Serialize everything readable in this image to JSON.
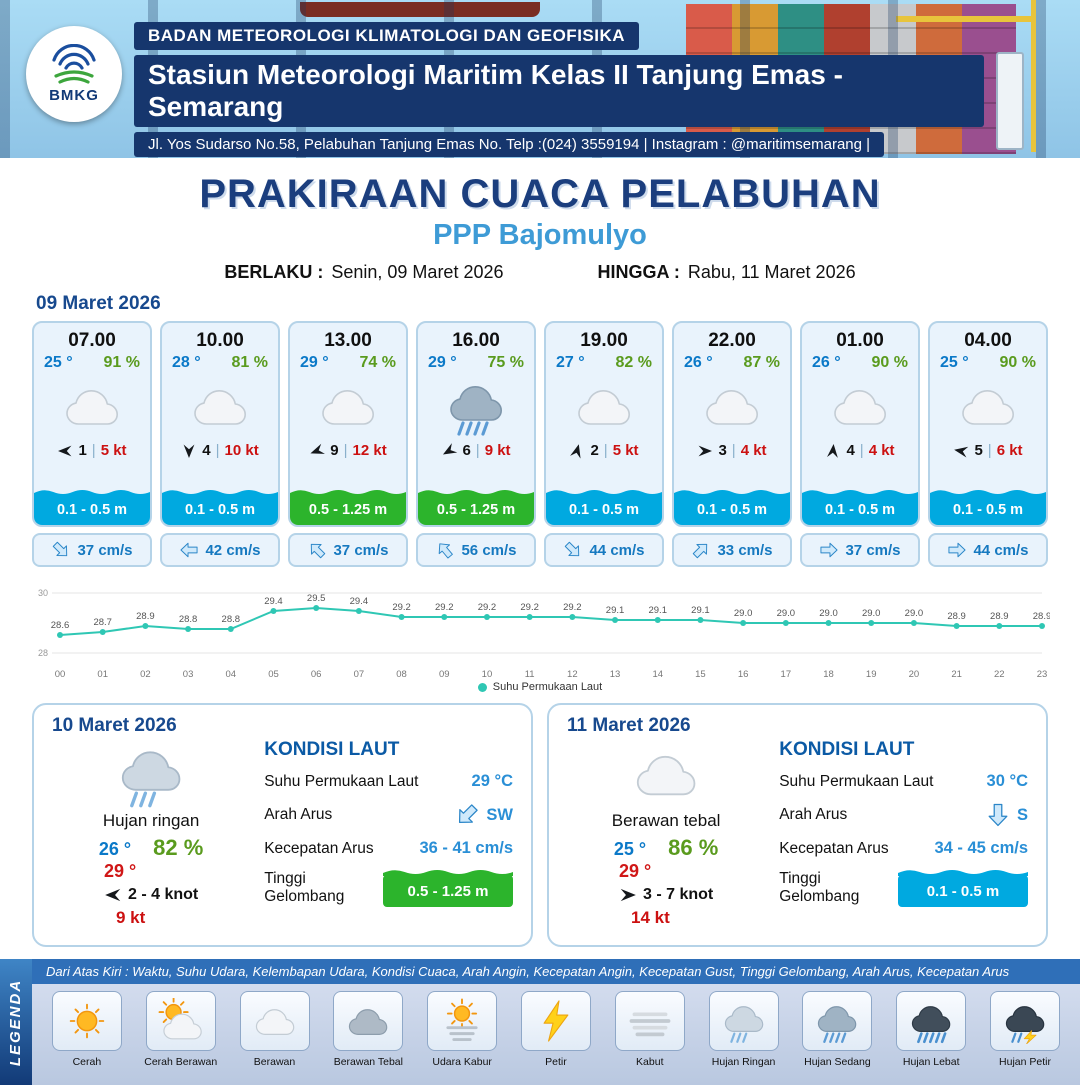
{
  "header": {
    "logo_text": "BMKG",
    "org": "BADAN METEOROLOGI KLIMATOLOGI DAN GEOFISIKA",
    "station": "Stasiun Meteorologi Maritim Kelas II Tanjung Emas - Semarang",
    "address": "Jl. Yos Sudarso No.58, Pelabuhan Tanjung Emas No. Telp :(024) 3559194 | Instagram : @maritimsemarang |"
  },
  "title": {
    "main": "PRAKIRAAN CUACA PELABUHAN",
    "location": "PPP Bajomulyo"
  },
  "validity": {
    "berlaku_label": "BERLAKU :",
    "berlaku_value": "Senin, 09 Maret 2026",
    "hingga_label": "HINGGA :",
    "hingga_value": "Rabu, 11 Maret 2026"
  },
  "day_label": "09 Maret 2026",
  "hourly": [
    {
      "time": "07.00",
      "temp": "25 °",
      "humidity": "91 %",
      "icon": "cloud",
      "wind_deg": 270,
      "wind_num": "1",
      "wind_speed": "5 kt",
      "wave": "0.1 - 0.5 m",
      "wave_color": "blue",
      "cur_deg": 135,
      "cur": "37 cm/s"
    },
    {
      "time": "10.00",
      "temp": "28 °",
      "humidity": "81 %",
      "icon": "cloud",
      "wind_deg": 180,
      "wind_num": "4",
      "wind_speed": "10 kt",
      "wave": "0.1 - 0.5 m",
      "wave_color": "blue",
      "cur_deg": 270,
      "cur": "42 cm/s"
    },
    {
      "time": "13.00",
      "temp": "29 °",
      "humidity": "74 %",
      "icon": "cloud",
      "wind_deg": 250,
      "wind_num": "9",
      "wind_speed": "12 kt",
      "wave": "0.5 - 1.25 m",
      "wave_color": "green",
      "cur_deg": 315,
      "cur": "37 cm/s"
    },
    {
      "time": "16.00",
      "temp": "29 °",
      "humidity": "75 %",
      "icon": "rain-med",
      "wind_deg": 240,
      "wind_num": "6",
      "wind_speed": "9 kt",
      "wave": "0.5 - 1.25 m",
      "wave_color": "green",
      "cur_deg": 320,
      "cur": "56 cm/s"
    },
    {
      "time": "19.00",
      "temp": "27 °",
      "humidity": "82 %",
      "icon": "cloud",
      "wind_deg": 15,
      "wind_num": "2",
      "wind_speed": "5 kt",
      "wave": "0.1 - 0.5 m",
      "wave_color": "blue",
      "cur_deg": 135,
      "cur": "44 cm/s"
    },
    {
      "time": "22.00",
      "temp": "26 °",
      "humidity": "87 %",
      "icon": "cloud",
      "wind_deg": 90,
      "wind_num": "3",
      "wind_speed": "4 kt",
      "wave": "0.1 - 0.5 m",
      "wave_color": "blue",
      "cur_deg": 45,
      "cur": "33 cm/s"
    },
    {
      "time": "01.00",
      "temp": "26 °",
      "humidity": "90 %",
      "icon": "cloud",
      "wind_deg": 5,
      "wind_num": "4",
      "wind_speed": "4 kt",
      "wave": "0.1 - 0.5 m",
      "wave_color": "blue",
      "cur_deg": 90,
      "cur": "37 cm/s"
    },
    {
      "time": "04.00",
      "temp": "25 °",
      "humidity": "90 %",
      "icon": "cloud",
      "wind_deg": 280,
      "wind_num": "5",
      "wind_speed": "6 kt",
      "wave": "0.1 - 0.5 m",
      "wave_color": "blue",
      "cur_deg": 90,
      "cur": "44 cm/s"
    }
  ],
  "chart_data": {
    "type": "line",
    "legend": "Suhu Permukaan Laut",
    "legend_position": "bottom",
    "grid": true,
    "x": [
      "00",
      "01",
      "02",
      "03",
      "04",
      "05",
      "06",
      "07",
      "08",
      "09",
      "10",
      "11",
      "12",
      "13",
      "14",
      "15",
      "16",
      "17",
      "18",
      "19",
      "20",
      "21",
      "22",
      "23"
    ],
    "values": [
      28.6,
      28.7,
      28.9,
      28.8,
      28.8,
      29.4,
      29.5,
      29.4,
      29.2,
      29.2,
      29.2,
      29.2,
      29.2,
      29.1,
      29.1,
      29.1,
      29.0,
      29.0,
      29.0,
      29.0,
      29.0,
      28.9,
      28.9,
      28.9
    ],
    "ylim": [
      28,
      30
    ],
    "line_color": "#2fc7b4"
  },
  "daily": [
    {
      "date": "10 Maret 2026",
      "icon": "rain-light",
      "condition": "Hujan ringan",
      "temp_min": "26 °",
      "humidity": "82 %",
      "temp_max": "29 °",
      "wind_deg": 270,
      "wind_range": "2  - 4 knot",
      "gust": "9 kt",
      "sea": {
        "title": "KONDISI LAUT",
        "sst_label": "Suhu Permukaan Laut",
        "sst": "29 °C",
        "dir_label": "Arah Arus",
        "dir": "SW",
        "dir_deg": 225,
        "speed_label": "Kecepatan Arus",
        "speed": "36 - 41 cm/s",
        "wave_label": "Tinggi Gelombang",
        "wave": "0.5 - 1.25 m",
        "wave_color": "green"
      }
    },
    {
      "date": "11 Maret 2026",
      "icon": "cloud",
      "condition": "Berawan tebal",
      "temp_min": "25 °",
      "humidity": "86 %",
      "temp_max": "29 °",
      "wind_deg": 90,
      "wind_range": "3  - 7 knot",
      "gust": "14 kt",
      "sea": {
        "title": "KONDISI LAUT",
        "sst_label": "Suhu Permukaan Laut",
        "sst": "30 °C",
        "dir_label": "Arah Arus",
        "dir": "S",
        "dir_deg": 180,
        "speed_label": "Kecepatan Arus",
        "speed": "34 - 45 cm/s",
        "wave_label": "Tinggi Gelombang",
        "wave": "0.1 - 0.5 m",
        "wave_color": "blue"
      }
    }
  ],
  "legend": {
    "title": "LEGENDA",
    "description": "Dari Atas Kiri : Waktu, Suhu Udara, Kelembapan Udara, Kondisi Cuaca, Arah Angin, Kecepatan Angin, Kecepatan Gust, Tinggi Gelombang, Arah Arus, Kecepatan Arus",
    "items": [
      {
        "icon": "sun",
        "label": "Cerah"
      },
      {
        "icon": "sun-cloud",
        "label": "Cerah Berawan"
      },
      {
        "icon": "cloud",
        "label": "Berawan"
      },
      {
        "icon": "cloud-gray",
        "label": "Berawan Tebal"
      },
      {
        "icon": "haze",
        "label": "Udara Kabur"
      },
      {
        "icon": "lightning",
        "label": "Petir"
      },
      {
        "icon": "fog",
        "label": "Kabut"
      },
      {
        "icon": "rain-light",
        "label": "Hujan Ringan"
      },
      {
        "icon": "rain-med",
        "label": "Hujan Sedang"
      },
      {
        "icon": "rain-heavy",
        "label": "Hujan Lebat"
      },
      {
        "icon": "storm",
        "label": "Hujan Petir"
      }
    ]
  }
}
